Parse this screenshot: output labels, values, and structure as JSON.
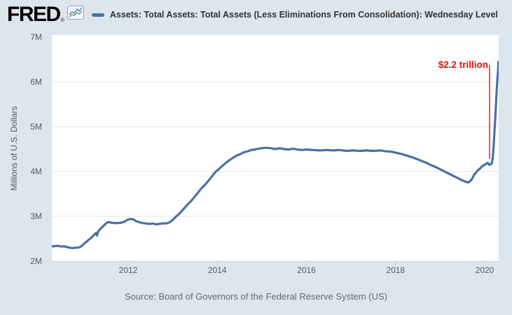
{
  "header": {
    "logo_text": "FRED",
    "logo_registered_mark": "®"
  },
  "source_line": "Source: Board of Governors of the Federal Reserve System (US)",
  "colors": {
    "background": "#dde5ed",
    "plot_background": "#ffffff",
    "line": "#4572a7",
    "annotation_red": "#e01010",
    "grid": "#e6e6e6",
    "axis_line": "#cfd4da",
    "tick_mark": "#c2cad2"
  },
  "chart_data": {
    "type": "line",
    "ylabel": "Millions of U.S. Dollars",
    "xlim": [
      2010.29,
      2020.31
    ],
    "ylim": [
      2,
      7
    ],
    "grid": "horizontal",
    "legend_position": "top",
    "x_ticks": [
      {
        "year": 2012,
        "label": "2012"
      },
      {
        "year": 2014,
        "label": "2014"
      },
      {
        "year": 2016,
        "label": "2016"
      },
      {
        "year": 2018,
        "label": "2018"
      },
      {
        "year": 2020,
        "label": "2020"
      }
    ],
    "y_ticks": [
      {
        "value": 2,
        "label": "2M"
      },
      {
        "value": 3,
        "label": "3M"
      },
      {
        "value": 4,
        "label": "4M"
      },
      {
        "value": 5,
        "label": "5M"
      },
      {
        "value": 6,
        "label": "6M"
      },
      {
        "value": 7,
        "label": "7M"
      }
    ],
    "annotation": {
      "text": "$2.2 trillion",
      "color": "#e01010",
      "line_year": 2020.11,
      "line_value_top": 6.38,
      "line_value_bottom": 4.28
    },
    "series": [
      {
        "name": "Assets: Total Assets: Total Assets (Less Eliminations From Consolidation): Wednesday Level",
        "color": "#4572a7",
        "units": "Millions of U.S. Dollars, axis labels in M",
        "points": [
          [
            2010.29,
            2.33
          ],
          [
            2010.35,
            2.335
          ],
          [
            2010.42,
            2.34
          ],
          [
            2010.5,
            2.325
          ],
          [
            2010.56,
            2.33
          ],
          [
            2010.62,
            2.315
          ],
          [
            2010.68,
            2.3
          ],
          [
            2010.75,
            2.29
          ],
          [
            2010.82,
            2.3
          ],
          [
            2010.88,
            2.3
          ],
          [
            2010.95,
            2.33
          ],
          [
            2011.0,
            2.38
          ],
          [
            2011.06,
            2.43
          ],
          [
            2011.12,
            2.48
          ],
          [
            2011.18,
            2.53
          ],
          [
            2011.24,
            2.59
          ],
          [
            2011.28,
            2.63
          ],
          [
            2011.3,
            2.57
          ],
          [
            2011.33,
            2.67
          ],
          [
            2011.38,
            2.72
          ],
          [
            2011.44,
            2.78
          ],
          [
            2011.5,
            2.84
          ],
          [
            2011.55,
            2.87
          ],
          [
            2011.62,
            2.86
          ],
          [
            2011.7,
            2.85
          ],
          [
            2011.78,
            2.85
          ],
          [
            2011.85,
            2.86
          ],
          [
            2011.92,
            2.88
          ],
          [
            2011.98,
            2.92
          ],
          [
            2012.05,
            2.94
          ],
          [
            2012.12,
            2.93
          ],
          [
            2012.18,
            2.89
          ],
          [
            2012.25,
            2.87
          ],
          [
            2012.32,
            2.85
          ],
          [
            2012.4,
            2.84
          ],
          [
            2012.48,
            2.83
          ],
          [
            2012.55,
            2.84
          ],
          [
            2012.62,
            2.82
          ],
          [
            2012.7,
            2.83
          ],
          [
            2012.78,
            2.84
          ],
          [
            2012.85,
            2.84
          ],
          [
            2012.92,
            2.86
          ],
          [
            2013.0,
            2.92
          ],
          [
            2013.08,
            3.0
          ],
          [
            2013.16,
            3.07
          ],
          [
            2013.24,
            3.16
          ],
          [
            2013.32,
            3.25
          ],
          [
            2013.4,
            3.33
          ],
          [
            2013.48,
            3.42
          ],
          [
            2013.56,
            3.52
          ],
          [
            2013.64,
            3.62
          ],
          [
            2013.72,
            3.7
          ],
          [
            2013.8,
            3.79
          ],
          [
            2013.88,
            3.89
          ],
          [
            2013.96,
            3.99
          ],
          [
            2014.04,
            4.06
          ],
          [
            2014.12,
            4.13
          ],
          [
            2014.2,
            4.2
          ],
          [
            2014.28,
            4.26
          ],
          [
            2014.36,
            4.31
          ],
          [
            2014.44,
            4.36
          ],
          [
            2014.52,
            4.39
          ],
          [
            2014.6,
            4.43
          ],
          [
            2014.68,
            4.45
          ],
          [
            2014.76,
            4.48
          ],
          [
            2014.84,
            4.49
          ],
          [
            2014.92,
            4.51
          ],
          [
            2015.0,
            4.52
          ],
          [
            2015.1,
            4.53
          ],
          [
            2015.2,
            4.52
          ],
          [
            2015.3,
            4.5
          ],
          [
            2015.4,
            4.52
          ],
          [
            2015.5,
            4.5
          ],
          [
            2015.6,
            4.49
          ],
          [
            2015.7,
            4.51
          ],
          [
            2015.8,
            4.49
          ],
          [
            2015.9,
            4.48
          ],
          [
            2016.0,
            4.49
          ],
          [
            2016.15,
            4.48
          ],
          [
            2016.3,
            4.47
          ],
          [
            2016.45,
            4.48
          ],
          [
            2016.6,
            4.47
          ],
          [
            2016.75,
            4.48
          ],
          [
            2016.9,
            4.46
          ],
          [
            2017.05,
            4.47
          ],
          [
            2017.2,
            4.46
          ],
          [
            2017.35,
            4.47
          ],
          [
            2017.5,
            4.46
          ],
          [
            2017.65,
            4.47
          ],
          [
            2017.8,
            4.45
          ],
          [
            2017.92,
            4.44
          ],
          [
            2018.0,
            4.42
          ],
          [
            2018.1,
            4.4
          ],
          [
            2018.2,
            4.37
          ],
          [
            2018.3,
            4.34
          ],
          [
            2018.4,
            4.31
          ],
          [
            2018.5,
            4.27
          ],
          [
            2018.6,
            4.23
          ],
          [
            2018.7,
            4.19
          ],
          [
            2018.8,
            4.14
          ],
          [
            2018.9,
            4.1
          ],
          [
            2019.0,
            4.05
          ],
          [
            2019.1,
            4.0
          ],
          [
            2019.2,
            3.95
          ],
          [
            2019.3,
            3.9
          ],
          [
            2019.4,
            3.85
          ],
          [
            2019.5,
            3.8
          ],
          [
            2019.58,
            3.77
          ],
          [
            2019.63,
            3.755
          ],
          [
            2019.68,
            3.79
          ],
          [
            2019.72,
            3.84
          ],
          [
            2019.76,
            3.92
          ],
          [
            2019.8,
            3.97
          ],
          [
            2019.85,
            4.03
          ],
          [
            2019.9,
            4.07
          ],
          [
            2019.95,
            4.12
          ],
          [
            2020.0,
            4.15
          ],
          [
            2020.04,
            4.18
          ],
          [
            2020.07,
            4.19
          ],
          [
            2020.1,
            4.15
          ],
          [
            2020.13,
            4.16
          ],
          [
            2020.16,
            4.18
          ],
          [
            2020.18,
            4.31
          ],
          [
            2020.2,
            4.55
          ],
          [
            2020.22,
            4.9
          ],
          [
            2020.24,
            5.25
          ],
          [
            2020.26,
            5.62
          ],
          [
            2020.28,
            5.98
          ],
          [
            2020.3,
            6.25
          ],
          [
            2020.31,
            6.45
          ]
        ]
      }
    ]
  }
}
